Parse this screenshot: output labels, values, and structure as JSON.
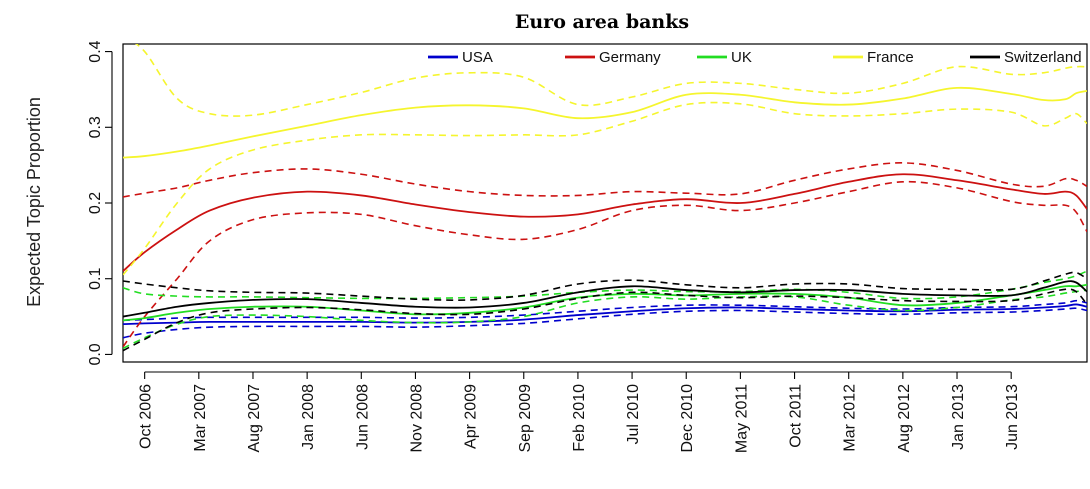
{
  "chart_data": {
    "type": "line",
    "title": "Euro area banks",
    "ylabel": "Expected Topic Proportion",
    "xlabel": "",
    "ylim": [
      -0.01,
      0.41
    ],
    "yticks": [
      0.0,
      0.1,
      0.2,
      0.3,
      0.4
    ],
    "ytick_labels": [
      "0.0",
      "0.1",
      "0.2",
      "0.3",
      "0.4"
    ],
    "x_ticks": [
      "Oct 2006",
      "Mar 2007",
      "Aug 2007",
      "Jan 2008",
      "Jun 2008",
      "Nov 2008",
      "Apr 2009",
      "Sep 2009",
      "Feb 2010",
      "Jul 2010",
      "Dec 2010",
      "May 2011",
      "Oct 2011",
      "Mar 2012",
      "Aug 2012",
      "Jan 2013",
      "Jun 2013"
    ],
    "x_range_months": [
      -2,
      87
    ],
    "x_sample_months": [
      -2,
      0,
      3,
      6,
      10,
      15,
      20,
      25,
      30,
      35,
      40,
      45,
      50,
      55,
      60,
      65,
      70,
      75,
      80,
      83,
      85,
      86,
      87
    ],
    "legend_position": "top",
    "grid": false,
    "series": [
      {
        "name": "USA",
        "color": "#0000cc",
        "mean": [
          0.04,
          0.041,
          0.042,
          0.043,
          0.043,
          0.043,
          0.043,
          0.042,
          0.043,
          0.046,
          0.052,
          0.057,
          0.061,
          0.062,
          0.06,
          0.058,
          0.057,
          0.059,
          0.06,
          0.062,
          0.064,
          0.066,
          0.063
        ],
        "upper": [
          0.045,
          0.046,
          0.048,
          0.049,
          0.049,
          0.049,
          0.049,
          0.048,
          0.049,
          0.052,
          0.057,
          0.062,
          0.065,
          0.065,
          0.063,
          0.061,
          0.06,
          0.062,
          0.063,
          0.066,
          0.068,
          0.071,
          0.068
        ],
        "lower": [
          0.022,
          0.028,
          0.033,
          0.036,
          0.037,
          0.037,
          0.037,
          0.036,
          0.038,
          0.041,
          0.047,
          0.053,
          0.057,
          0.058,
          0.056,
          0.054,
          0.053,
          0.055,
          0.056,
          0.058,
          0.06,
          0.061,
          0.058
        ]
      },
      {
        "name": "Germany",
        "color": "#cc1111",
        "mean": [
          0.11,
          0.135,
          0.165,
          0.19,
          0.207,
          0.215,
          0.21,
          0.198,
          0.188,
          0.182,
          0.185,
          0.198,
          0.205,
          0.2,
          0.212,
          0.228,
          0.238,
          0.23,
          0.218,
          0.212,
          0.215,
          0.21,
          0.192
        ],
        "upper": [
          0.208,
          0.213,
          0.22,
          0.23,
          0.24,
          0.245,
          0.238,
          0.225,
          0.215,
          0.21,
          0.21,
          0.215,
          0.213,
          0.212,
          0.23,
          0.245,
          0.253,
          0.243,
          0.225,
          0.222,
          0.232,
          0.23,
          0.222
        ],
        "lower": [
          0.01,
          0.05,
          0.1,
          0.15,
          0.178,
          0.187,
          0.185,
          0.17,
          0.158,
          0.152,
          0.165,
          0.19,
          0.197,
          0.19,
          0.2,
          0.215,
          0.228,
          0.22,
          0.202,
          0.197,
          0.197,
          0.188,
          0.162
        ]
      },
      {
        "name": "UK",
        "color": "#22dd22",
        "mean": [
          0.045,
          0.048,
          0.055,
          0.06,
          0.063,
          0.063,
          0.058,
          0.053,
          0.055,
          0.062,
          0.075,
          0.08,
          0.078,
          0.08,
          0.08,
          0.075,
          0.065,
          0.068,
          0.078,
          0.085,
          0.09,
          0.09,
          0.092
        ],
        "upper": [
          0.088,
          0.08,
          0.077,
          0.076,
          0.076,
          0.075,
          0.074,
          0.074,
          0.075,
          0.077,
          0.082,
          0.085,
          0.083,
          0.083,
          0.086,
          0.082,
          0.074,
          0.076,
          0.086,
          0.095,
          0.1,
          0.104,
          0.11
        ],
        "lower": [
          0.008,
          0.022,
          0.04,
          0.05,
          0.052,
          0.05,
          0.045,
          0.042,
          0.043,
          0.05,
          0.068,
          0.076,
          0.073,
          0.076,
          0.076,
          0.065,
          0.058,
          0.062,
          0.072,
          0.076,
          0.081,
          0.083,
          0.085
        ]
      },
      {
        "name": "France",
        "color": "#f5f52e",
        "mean": [
          0.26,
          0.262,
          0.268,
          0.276,
          0.288,
          0.302,
          0.316,
          0.326,
          0.329,
          0.325,
          0.312,
          0.32,
          0.343,
          0.343,
          0.333,
          0.33,
          0.338,
          0.352,
          0.344,
          0.336,
          0.337,
          0.345,
          0.348
        ],
        "upper": [
          0.42,
          0.4,
          0.338,
          0.318,
          0.316,
          0.33,
          0.346,
          0.365,
          0.372,
          0.366,
          0.33,
          0.34,
          0.358,
          0.358,
          0.35,
          0.345,
          0.358,
          0.38,
          0.37,
          0.372,
          0.378,
          0.38,
          0.38
        ],
        "lower": [
          0.105,
          0.14,
          0.2,
          0.245,
          0.27,
          0.283,
          0.29,
          0.29,
          0.289,
          0.29,
          0.29,
          0.308,
          0.33,
          0.331,
          0.318,
          0.315,
          0.318,
          0.324,
          0.32,
          0.302,
          0.312,
          0.318,
          0.305
        ]
      },
      {
        "name": "Switzerland",
        "color": "#000000",
        "mean": [
          0.05,
          0.055,
          0.063,
          0.068,
          0.072,
          0.073,
          0.068,
          0.063,
          0.062,
          0.068,
          0.082,
          0.09,
          0.085,
          0.082,
          0.085,
          0.085,
          0.08,
          0.078,
          0.078,
          0.088,
          0.096,
          0.095,
          0.083
        ],
        "upper": [
          0.097,
          0.093,
          0.088,
          0.084,
          0.082,
          0.081,
          0.077,
          0.073,
          0.072,
          0.078,
          0.093,
          0.098,
          0.092,
          0.088,
          0.093,
          0.093,
          0.087,
          0.086,
          0.086,
          0.097,
          0.106,
          0.108,
          0.1
        ],
        "lower": [
          0.005,
          0.02,
          0.042,
          0.055,
          0.06,
          0.062,
          0.059,
          0.054,
          0.053,
          0.06,
          0.074,
          0.082,
          0.078,
          0.075,
          0.077,
          0.075,
          0.071,
          0.07,
          0.071,
          0.08,
          0.086,
          0.083,
          0.066
        ]
      }
    ]
  }
}
